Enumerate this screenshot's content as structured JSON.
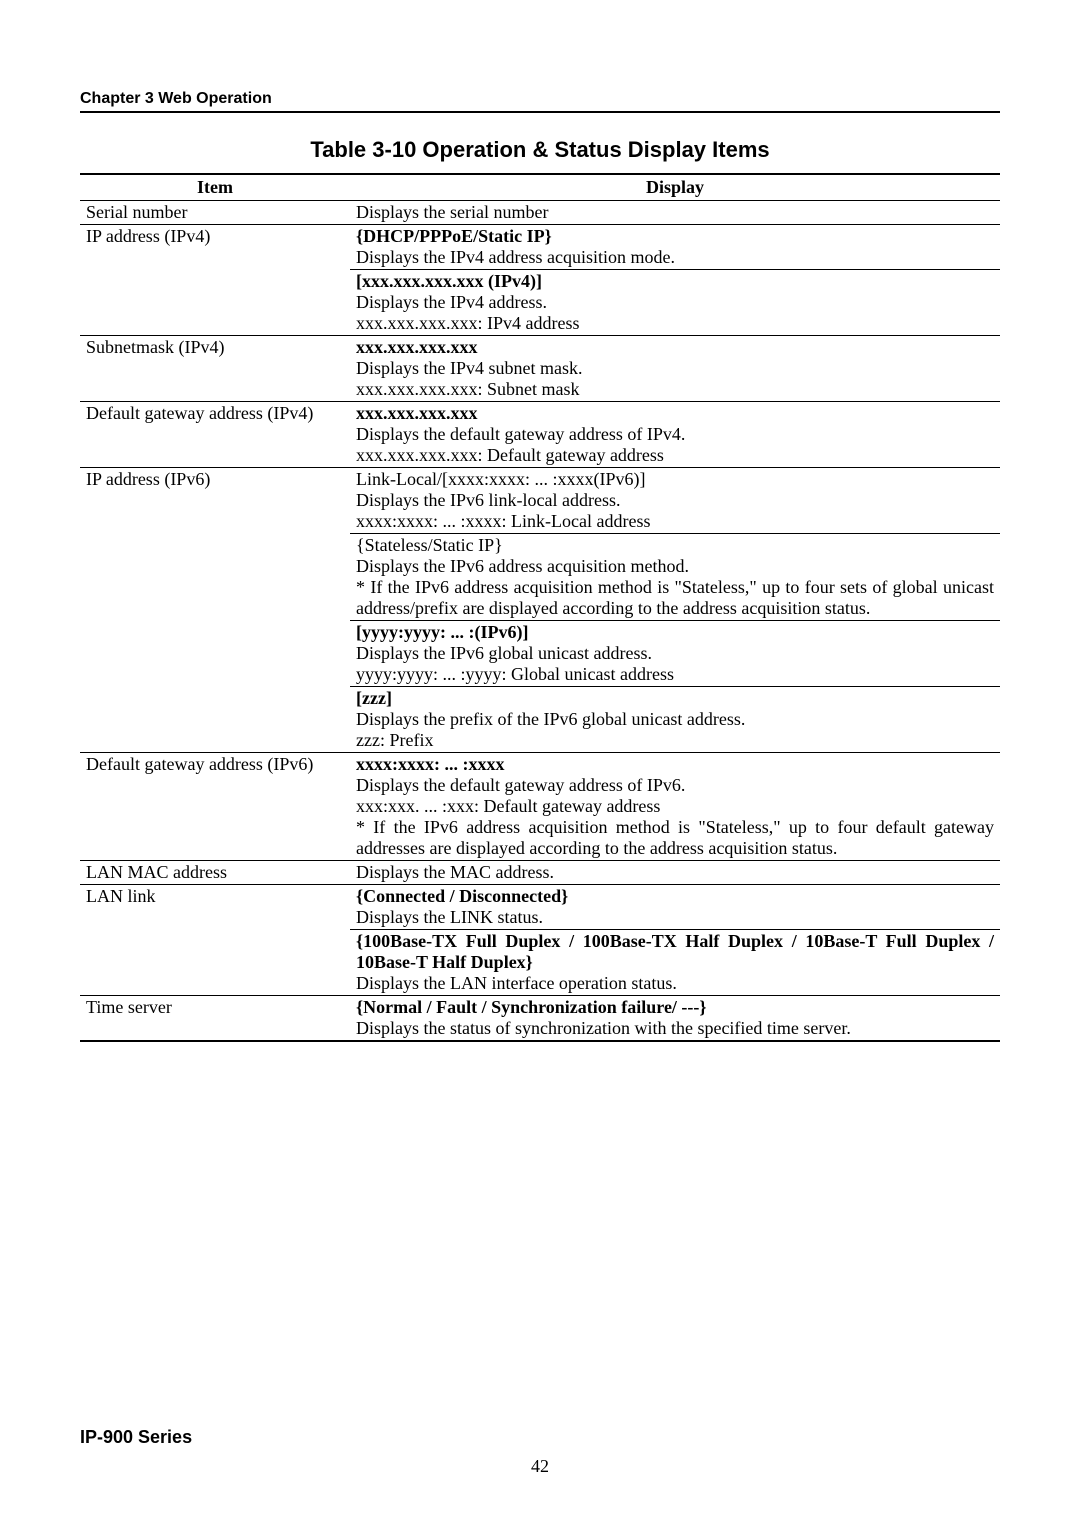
{
  "header": {
    "chapter": "Chapter 3  Web Operation"
  },
  "table": {
    "title": "Table 3-10  Operation & Status Display Items",
    "headers": {
      "item": "Item",
      "display": "Display"
    },
    "rows": {
      "r1_item": "Serial number",
      "r1_disp": "Displays the serial number",
      "r2_item": "IP address (IPv4)",
      "r2_a_bold": "{DHCP/PPPoE/Static IP}",
      "r2_a_txt": "Displays the IPv4 address acquisition mode.",
      "r2_b_bold": "[xxx.xxx.xxx.xxx (IPv4)]",
      "r2_b_txt1": "Displays the IPv4 address.",
      "r2_b_txt2": "xxx.xxx.xxx.xxx: IPv4 address",
      "r3_item": "Subnetmask (IPv4)",
      "r3_bold": "xxx.xxx.xxx.xxx",
      "r3_t1": "Displays the IPv4 subnet mask.",
      "r3_t2": "xxx.xxx.xxx.xxx: Subnet mask",
      "r4_item": "Default gateway address (IPv4)",
      "r4_bold": "xxx.xxx.xxx.xxx",
      "r4_t1": "Displays the default gateway address of IPv4.",
      "r4_t2": "xxx.xxx.xxx.xxx: Default gateway address",
      "r5_item": "IP address (IPv6)",
      "r5a_l1": "Link-Local/[xxxx:xxxx: ... :xxxx(IPv6)]",
      "r5a_l2": "Displays the IPv6 link-local address.",
      "r5a_l3": "xxxx:xxxx: ... :xxxx: Link-Local address",
      "r5b_l1": "{Stateless/Static IP}",
      "r5b_l2": "Displays the IPv6 address acquisition method.",
      "r5b_l3": "* If the IPv6 address acquisition method is \"Stateless,\" up to four sets of global unicast address/prefix are displayed according to the address acquisition status.",
      "r5c_bold": "[yyyy:yyyy: ... :(IPv6)]",
      "r5c_l2": "Displays the IPv6 global unicast address.",
      "r5c_l3": "yyyy:yyyy: ... :yyyy: Global unicast address",
      "r5d_bold": "[zzz]",
      "r5d_l2": "Displays the prefix of the IPv6 global unicast address.",
      "r5d_l3": "zzz: Prefix",
      "r6_item": "Default gateway address (IPv6)",
      "r6_bold": "xxxx:xxxx: ... :xxxx",
      "r6_l2": "Displays the default gateway address of IPv6.",
      "r6_l3": "xxx:xxx. ... :xxx: Default gateway address",
      "r6_l4": "* If the IPv6 address acquisition method is \"Stateless,\" up to four default gateway addresses are displayed according to the address acquisition status.",
      "r7_item": "LAN MAC address",
      "r7_disp": "Displays the MAC address.",
      "r8_item": "LAN link",
      "r8a_bold": "{Connected / Disconnected}",
      "r8a_txt": "Displays the LINK status.",
      "r8b_bold": "{100Base-TX Full Duplex / 100Base-TX Half Duplex / 10Base-T Full Duplex / 10Base-T Half Duplex}",
      "r8b_txt": "Displays the LAN interface operation status.",
      "r9_item": "Time server",
      "r9_bold": "{Normal / Fault / Synchronization failure/ ---}",
      "r9_txt": "Displays the status of synchronization with the specified time server."
    }
  },
  "footer": {
    "series": "IP-900 Series",
    "page": "42"
  }
}
